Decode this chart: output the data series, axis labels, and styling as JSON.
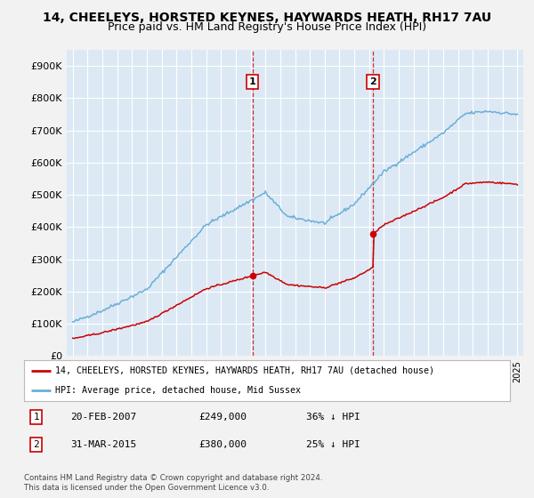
{
  "title": "14, CHEELEYS, HORSTED KEYNES, HAYWARDS HEATH, RH17 7AU",
  "subtitle": "Price paid vs. HM Land Registry's House Price Index (HPI)",
  "ylim": [
    0,
    950000
  ],
  "yticks": [
    0,
    100000,
    200000,
    300000,
    400000,
    500000,
    600000,
    700000,
    800000,
    900000
  ],
  "ytick_labels": [
    "£0",
    "£100K",
    "£200K",
    "£300K",
    "£400K",
    "£500K",
    "£600K",
    "£700K",
    "£800K",
    "£900K"
  ],
  "hpi_color": "#6baed6",
  "price_color": "#cc0000",
  "sale1_year": 2007.12,
  "sale1_price": 249000,
  "sale2_year": 2015.25,
  "sale2_price": 380000,
  "legend1": "14, CHEELEYS, HORSTED KEYNES, HAYWARDS HEATH, RH17 7AU (detached house)",
  "legend2": "HPI: Average price, detached house, Mid Sussex",
  "row1_date": "20-FEB-2007",
  "row1_price": "£249,000",
  "row1_pct": "36% ↓ HPI",
  "row2_date": "31-MAR-2015",
  "row2_price": "£380,000",
  "row2_pct": "25% ↓ HPI",
  "footnote": "Contains HM Land Registry data © Crown copyright and database right 2024.\nThis data is licensed under the Open Government Licence v3.0.",
  "plot_bg": "#dce9f5",
  "grid_color": "#ffffff",
  "fig_bg": "#f2f2f2"
}
